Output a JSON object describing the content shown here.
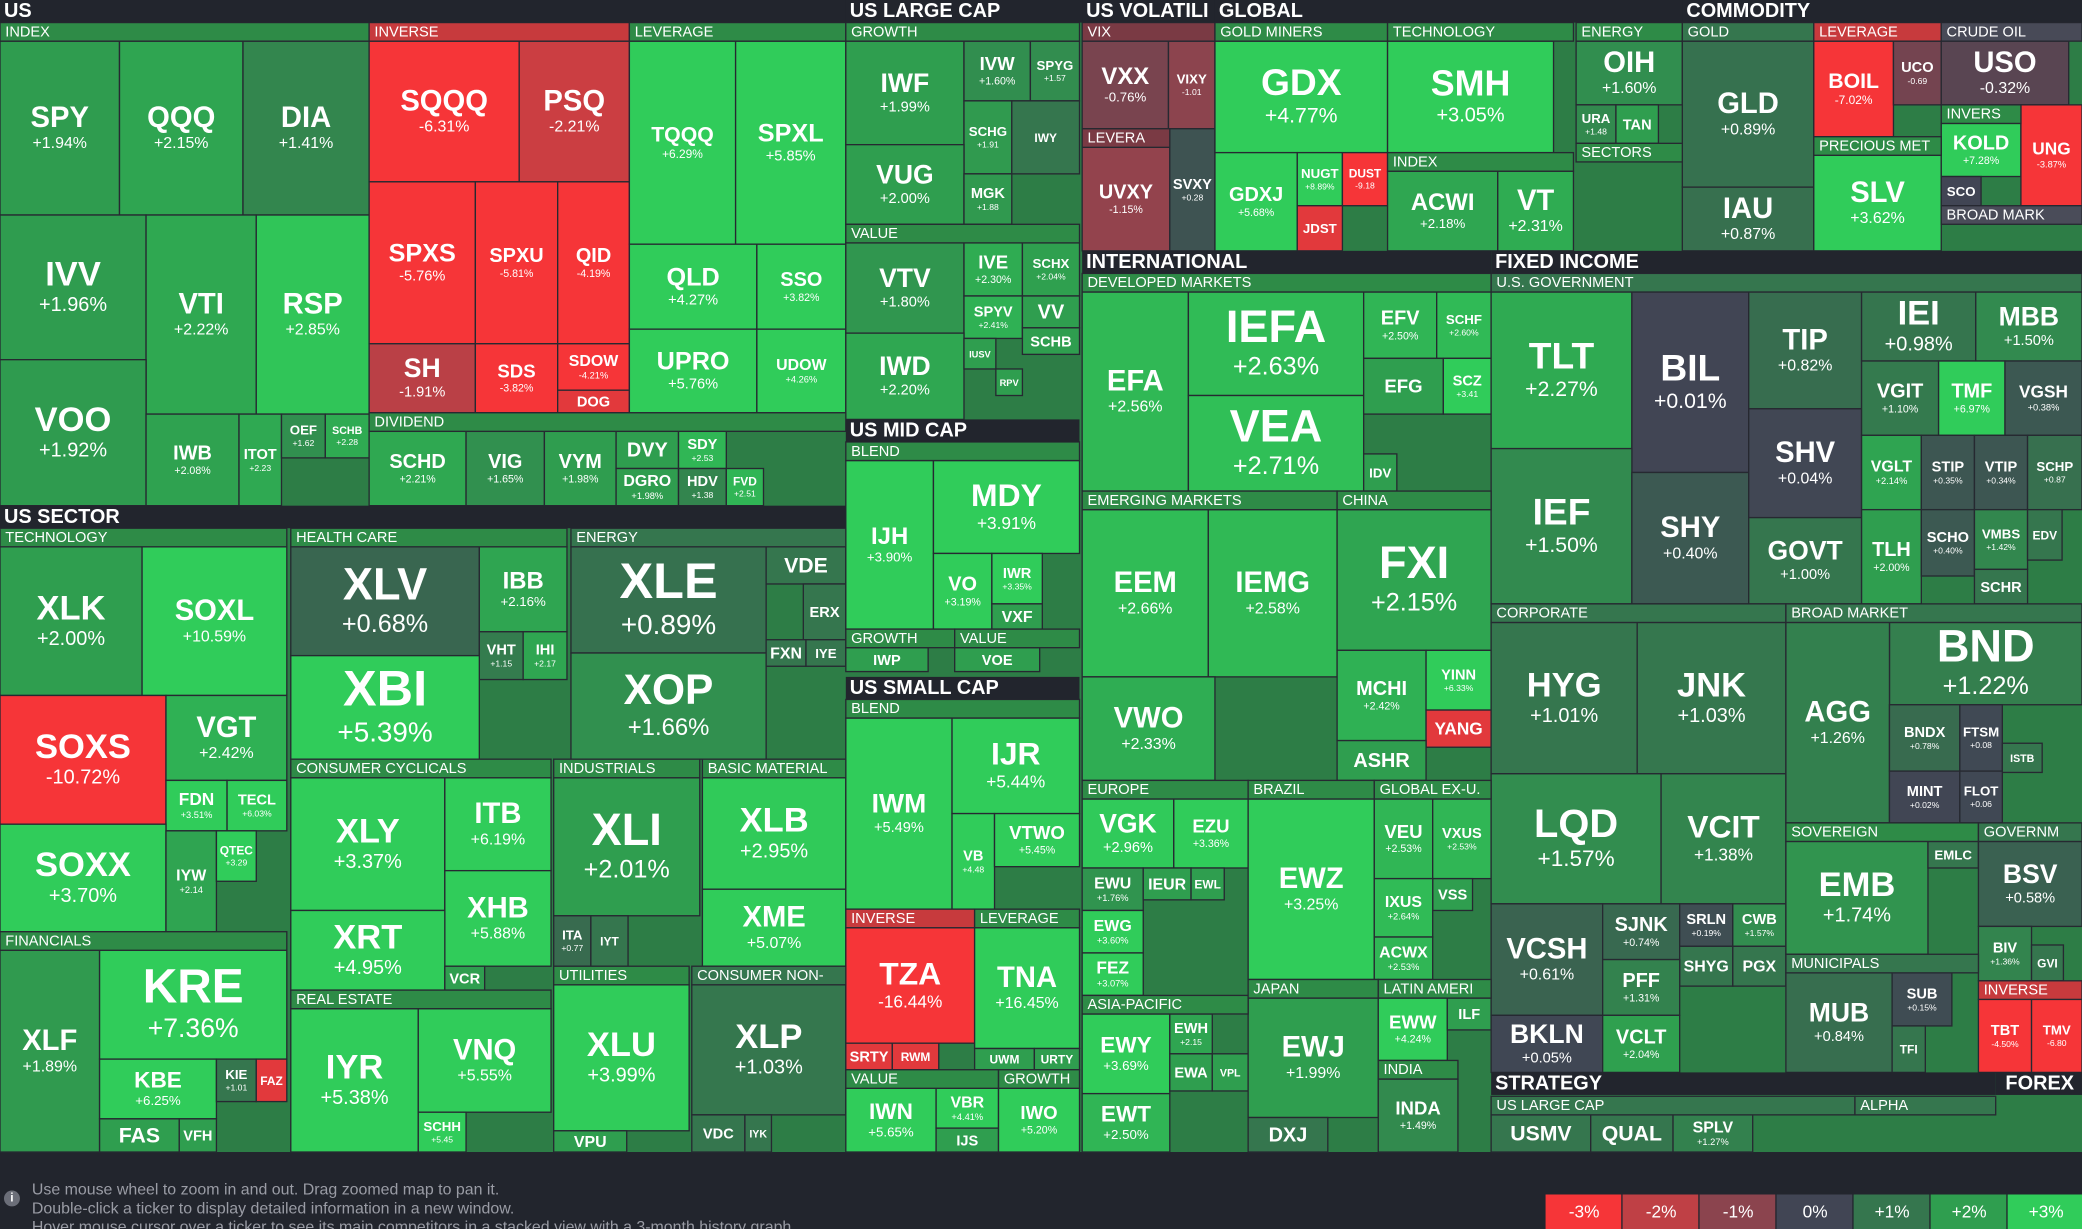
{
  "sections": [
    "US",
    "US LARGE CAP",
    "US VOLATILI",
    "GLOBAL",
    "COMMODITY",
    "US SECTOR",
    "US MID CAP",
    "US SMALL CAP",
    "INTERNATIONAL",
    "FIXED INCOME",
    "STRATEGY",
    "FOREX"
  ],
  "groups": [
    "INDEX",
    "INVERSE",
    "LEVERAGE",
    "DIVIDEND",
    "GROWTH",
    "VALUE",
    "VIX",
    "LEVERA",
    "GOLD MINERS",
    "TECHNOLOGY",
    "ENERGY",
    "INDEX",
    "SECTORS",
    "GOLD",
    "LEVERAGE",
    "CRUDE OIL",
    "PRECIOUS MET",
    "INVERS",
    "BROAD MARK",
    "TECHNOLOGY",
    "HEALTH CARE",
    "ENERGY",
    "CONSUMER CYCLICALS",
    "INDUSTRIALS",
    "BASIC MATERIAL",
    "FINANCIALS",
    "REAL ESTATE",
    "UTILITIES",
    "CONSUMER NON-",
    "BLEND",
    "GROWTH",
    "VALUE",
    "BLEND",
    "INVERSE",
    "LEVERAGE",
    "VALUE",
    "GROWTH",
    "DEVELOPED MARKETS",
    "EMERGING MARKETS",
    "CHINA",
    "EUROPE",
    "BRAZIL",
    "GLOBAL EX-U.",
    "ASIA-PACIFIC",
    "JAPAN",
    "LATIN AMERI",
    "INDIA",
    "U.S. GOVERNMENT",
    "CORPORATE",
    "BROAD MARKET",
    "SOVEREIGN",
    "GOVERNM",
    "MUNICIPALS",
    "INVERSE",
    "US LARGE CAP",
    "ALPHA"
  ],
  "tiles": [
    {
      "ticker": "SPY",
      "change": "+1.94%"
    },
    {
      "ticker": "QQQ",
      "change": "+2.15%"
    },
    {
      "ticker": "DIA",
      "change": "+1.41%"
    },
    {
      "ticker": "IVV",
      "change": "+1.96%"
    },
    {
      "ticker": "VTI",
      "change": "+2.22%"
    },
    {
      "ticker": "RSP",
      "change": "+2.85%"
    },
    {
      "ticker": "VOO",
      "change": "+1.92%"
    },
    {
      "ticker": "IWB",
      "change": "+2.08%"
    },
    {
      "ticker": "ITOT",
      "change": "+2.23"
    },
    {
      "ticker": "OEF",
      "change": "+1.62"
    },
    {
      "ticker": "SCHB",
      "change": "+2.28"
    },
    {
      "ticker": "SQQQ",
      "change": "-6.31%"
    },
    {
      "ticker": "PSQ",
      "change": "-2.21%"
    },
    {
      "ticker": "SPXS",
      "change": "-5.76%"
    },
    {
      "ticker": "SPXU",
      "change": "-5.81%"
    },
    {
      "ticker": "QID",
      "change": "-4.19%"
    },
    {
      "ticker": "SH",
      "change": "-1.91%"
    },
    {
      "ticker": "SDS",
      "change": "-3.82%"
    },
    {
      "ticker": "SDOW",
      "change": "-4.21%"
    },
    {
      "ticker": "DOG"
    },
    {
      "ticker": "TQQQ",
      "change": "+6.29%"
    },
    {
      "ticker": "SPXL",
      "change": "+5.85%"
    },
    {
      "ticker": "QLD",
      "change": "+4.27%"
    },
    {
      "ticker": "SSO",
      "change": "+3.82%"
    },
    {
      "ticker": "UPRO",
      "change": "+5.76%"
    },
    {
      "ticker": "UDOW",
      "change": "+4.26%"
    },
    {
      "ticker": "SCHD",
      "change": "+2.21%"
    },
    {
      "ticker": "VIG",
      "change": "+1.65%"
    },
    {
      "ticker": "VYM",
      "change": "+1.98%"
    },
    {
      "ticker": "DVY"
    },
    {
      "ticker": "SDY",
      "change": "+2.53"
    },
    {
      "ticker": "DGRO",
      "change": "+1.98%"
    },
    {
      "ticker": "HDV",
      "change": "+1.38"
    },
    {
      "ticker": "FVD",
      "change": "+2.51"
    },
    {
      "ticker": "IWF",
      "change": "+1.99%"
    },
    {
      "ticker": "IVW",
      "change": "+1.60%"
    },
    {
      "ticker": "SPYG",
      "change": "+1.57"
    },
    {
      "ticker": "SCHG",
      "change": "+1.91"
    },
    {
      "ticker": "IWY"
    },
    {
      "ticker": "VUG",
      "change": "+2.00%"
    },
    {
      "ticker": "MGK",
      "change": "+1.88"
    },
    {
      "ticker": "VTV",
      "change": "+1.80%"
    },
    {
      "ticker": "IVE",
      "change": "+2.30%"
    },
    {
      "ticker": "SCHX",
      "change": "+2.04%"
    },
    {
      "ticker": "SPYV",
      "change": "+2.41%"
    },
    {
      "ticker": "VV"
    },
    {
      "ticker": "SCHB"
    },
    {
      "ticker": "IWD",
      "change": "+2.20%"
    },
    {
      "ticker": "IUSV"
    },
    {
      "ticker": "RPV"
    },
    {
      "ticker": "VXX",
      "change": "-0.76%"
    },
    {
      "ticker": "VIXY",
      "change": "-1.01"
    },
    {
      "ticker": "UVXY",
      "change": "-1.15%"
    },
    {
      "ticker": "SVXY",
      "change": "+0.28"
    },
    {
      "ticker": "GDX",
      "change": "+4.77%"
    },
    {
      "ticker": "GDXJ",
      "change": "+5.68%"
    },
    {
      "ticker": "NUGT",
      "change": "+8.89%"
    },
    {
      "ticker": "DUST",
      "change": "-9.18"
    },
    {
      "ticker": "JDST"
    },
    {
      "ticker": "SMH",
      "change": "+3.05%"
    },
    {
      "ticker": "OIH",
      "change": "+1.60%"
    },
    {
      "ticker": "URA",
      "change": "+1.48"
    },
    {
      "ticker": "TAN"
    },
    {
      "ticker": "ACWI",
      "change": "+2.18%"
    },
    {
      "ticker": "VT",
      "change": "+2.31%"
    },
    {
      "ticker": "GLD",
      "change": "+0.89%"
    },
    {
      "ticker": "IAU",
      "change": "+0.87%"
    },
    {
      "ticker": "BOIL",
      "change": "-7.02%"
    },
    {
      "ticker": "UCO",
      "change": "-0.69"
    },
    {
      "ticker": "SLV",
      "change": "+3.62%"
    },
    {
      "ticker": "USO",
      "change": "-0.32%"
    },
    {
      "ticker": "KOLD",
      "change": "+7.28%"
    },
    {
      "ticker": "SCO"
    },
    {
      "ticker": "UNG",
      "change": "-3.87%"
    },
    {
      "ticker": "XLK",
      "change": "+2.00%"
    },
    {
      "ticker": "SOXL",
      "change": "+10.59%"
    },
    {
      "ticker": "SOXS",
      "change": "-10.72%"
    },
    {
      "ticker": "VGT",
      "change": "+2.42%"
    },
    {
      "ticker": "FDN",
      "change": "+3.51%"
    },
    {
      "ticker": "TECL",
      "change": "+6.03%"
    },
    {
      "ticker": "SOXX",
      "change": "+3.70%"
    },
    {
      "ticker": "IYW",
      "change": "+2.14"
    },
    {
      "ticker": "QTEC",
      "change": "+3.29"
    },
    {
      "ticker": "XLV",
      "change": "+0.68%"
    },
    {
      "ticker": "IBB",
      "change": "+2.16%"
    },
    {
      "ticker": "VHT",
      "change": "+1.15"
    },
    {
      "ticker": "IHI",
      "change": "+2.17"
    },
    {
      "ticker": "XBI",
      "change": "+5.39%"
    },
    {
      "ticker": "XLE",
      "change": "+0.89%"
    },
    {
      "ticker": "VDE"
    },
    {
      "ticker": "ERX"
    },
    {
      "ticker": "XOP",
      "change": "+1.66%"
    },
    {
      "ticker": "FXN"
    },
    {
      "ticker": "IYE"
    },
    {
      "ticker": "XLY",
      "change": "+3.37%"
    },
    {
      "ticker": "ITB",
      "change": "+6.19%"
    },
    {
      "ticker": "XHB",
      "change": "+5.88%"
    },
    {
      "ticker": "XRT",
      "change": "+4.95%"
    },
    {
      "ticker": "VCR"
    },
    {
      "ticker": "XLI",
      "change": "+2.01%"
    },
    {
      "ticker": "ITA",
      "change": "+0.77"
    },
    {
      "ticker": "IYT"
    },
    {
      "ticker": "XLB",
      "change": "+2.95%"
    },
    {
      "ticker": "XME",
      "change": "+5.07%"
    },
    {
      "ticker": "XLF",
      "change": "+1.89%"
    },
    {
      "ticker": "KRE",
      "change": "+7.36%"
    },
    {
      "ticker": "KBE",
      "change": "+6.25%"
    },
    {
      "ticker": "KIE",
      "change": "+1.01"
    },
    {
      "ticker": "FAZ"
    },
    {
      "ticker": "FAS"
    },
    {
      "ticker": "VFH"
    },
    {
      "ticker": "IYR",
      "change": "+5.38%"
    },
    {
      "ticker": "VNQ",
      "change": "+5.55%"
    },
    {
      "ticker": "SCHH",
      "change": "+5.45"
    },
    {
      "ticker": "XLU",
      "change": "+3.99%"
    },
    {
      "ticker": "VPU"
    },
    {
      "ticker": "XLP",
      "change": "+1.03%"
    },
    {
      "ticker": "VDC"
    },
    {
      "ticker": "IYK"
    },
    {
      "ticker": "IJH",
      "change": "+3.90%"
    },
    {
      "ticker": "MDY",
      "change": "+3.91%"
    },
    {
      "ticker": "VO",
      "change": "+3.19%"
    },
    {
      "ticker": "IWR",
      "change": "+3.35%"
    },
    {
      "ticker": "VXF"
    },
    {
      "ticker": "IWP"
    },
    {
      "ticker": "VOE"
    },
    {
      "ticker": "IWM",
      "change": "+5.49%"
    },
    {
      "ticker": "IJR",
      "change": "+5.44%"
    },
    {
      "ticker": "VB",
      "change": "+4.48"
    },
    {
      "ticker": "VTWO",
      "change": "+5.45%"
    },
    {
      "ticker": "TZA",
      "change": "-16.44%"
    },
    {
      "ticker": "SRTY"
    },
    {
      "ticker": "RWM"
    },
    {
      "ticker": "TNA",
      "change": "+16.45%"
    },
    {
      "ticker": "UWM"
    },
    {
      "ticker": "URTY"
    },
    {
      "ticker": "IWN",
      "change": "+5.65%"
    },
    {
      "ticker": "VBR",
      "change": "+4.41%"
    },
    {
      "ticker": "IJS"
    },
    {
      "ticker": "IWO",
      "change": "+5.20%"
    },
    {
      "ticker": "EFA",
      "change": "+2.56%"
    },
    {
      "ticker": "IEFA",
      "change": "+2.63%"
    },
    {
      "ticker": "VEA",
      "change": "+2.71%"
    },
    {
      "ticker": "EFV",
      "change": "+2.50%"
    },
    {
      "ticker": "SCHF",
      "change": "+2.60%"
    },
    {
      "ticker": "EFG"
    },
    {
      "ticker": "SCZ",
      "change": "+3.41"
    },
    {
      "ticker": "IDV"
    },
    {
      "ticker": "EEM",
      "change": "+2.66%"
    },
    {
      "ticker": "IEMG",
      "change": "+2.58%"
    },
    {
      "ticker": "VWO",
      "change": "+2.33%"
    },
    {
      "ticker": "FXI",
      "change": "+2.15%"
    },
    {
      "ticker": "MCHI",
      "change": "+2.42%"
    },
    {
      "ticker": "YINN",
      "change": "+6.33%"
    },
    {
      "ticker": "YANG"
    },
    {
      "ticker": "ASHR"
    },
    {
      "ticker": "VGK",
      "change": "+2.96%"
    },
    {
      "ticker": "EZU",
      "change": "+3.36%"
    },
    {
      "ticker": "EWU",
      "change": "+1.76%"
    },
    {
      "ticker": "IEUR"
    },
    {
      "ticker": "EWL"
    },
    {
      "ticker": "EWG",
      "change": "+3.60%"
    },
    {
      "ticker": "FEZ",
      "change": "+3.07%"
    },
    {
      "ticker": "EWZ",
      "change": "+3.25%"
    },
    {
      "ticker": "VEU",
      "change": "+2.53%"
    },
    {
      "ticker": "VXUS",
      "change": "+2.53%"
    },
    {
      "ticker": "VSS"
    },
    {
      "ticker": "IXUS",
      "change": "+2.64%"
    },
    {
      "ticker": "ACWX",
      "change": "+2.53%"
    },
    {
      "ticker": "EWY",
      "change": "+3.69%"
    },
    {
      "ticker": "EWH",
      "change": "+2.15"
    },
    {
      "ticker": "EWA"
    },
    {
      "ticker": "VPL"
    },
    {
      "ticker": "EWT",
      "change": "+2.50%"
    },
    {
      "ticker": "EWJ",
      "change": "+1.99%"
    },
    {
      "ticker": "DXJ"
    },
    {
      "ticker": "EWW",
      "change": "+4.24%"
    },
    {
      "ticker": "ILF"
    },
    {
      "ticker": "INDA",
      "change": "+1.49%"
    },
    {
      "ticker": "TLT",
      "change": "+2.27%"
    },
    {
      "ticker": "BIL",
      "change": "+0.01%"
    },
    {
      "ticker": "TIP",
      "change": "+0.82%"
    },
    {
      "ticker": "IEI",
      "change": "+0.98%"
    },
    {
      "ticker": "MBB",
      "change": "+1.50%"
    },
    {
      "ticker": "IEF",
      "change": "+1.50%"
    },
    {
      "ticker": "SHY",
      "change": "+0.40%"
    },
    {
      "ticker": "SHV",
      "change": "+0.04%"
    },
    {
      "ticker": "VGIT",
      "change": "+1.10%"
    },
    {
      "ticker": "TMF",
      "change": "+6.97%"
    },
    {
      "ticker": "VGSH",
      "change": "+0.38%"
    },
    {
      "ticker": "GOVT",
      "change": "+1.00%"
    },
    {
      "ticker": "VGLT",
      "change": "+2.14%"
    },
    {
      "ticker": "STIP",
      "change": "+0.35%"
    },
    {
      "ticker": "VTIP",
      "change": "+0.34%"
    },
    {
      "ticker": "SCHP",
      "change": "+0.87"
    },
    {
      "ticker": "TLH",
      "change": "+2.00%"
    },
    {
      "ticker": "SCHO",
      "change": "+0.40%"
    },
    {
      "ticker": "VMBS",
      "change": "+1.42%"
    },
    {
      "ticker": "EDV"
    },
    {
      "ticker": "SCHR"
    },
    {
      "ticker": "HYG",
      "change": "+1.01%"
    },
    {
      "ticker": "JNK",
      "change": "+1.03%"
    },
    {
      "ticker": "LQD",
      "change": "+1.57%"
    },
    {
      "ticker": "VCIT",
      "change": "+1.38%"
    },
    {
      "ticker": "VCSH",
      "change": "+0.61%"
    },
    {
      "ticker": "BKLN",
      "change": "+0.05%"
    },
    {
      "ticker": "SJNK",
      "change": "+0.74%"
    },
    {
      "ticker": "SRLN",
      "change": "+0.19%"
    },
    {
      "ticker": "CWB",
      "change": "+1.57%"
    },
    {
      "ticker": "SHYG"
    },
    {
      "ticker": "PGX"
    },
    {
      "ticker": "PFF",
      "change": "+1.31%"
    },
    {
      "ticker": "VCLT",
      "change": "+2.04%"
    },
    {
      "ticker": "BND",
      "change": "+1.22%"
    },
    {
      "ticker": "AGG",
      "change": "+1.26%"
    },
    {
      "ticker": "BNDX",
      "change": "+0.78%"
    },
    {
      "ticker": "FTSM",
      "change": "+0.08"
    },
    {
      "ticker": "ISTB"
    },
    {
      "ticker": "MINT",
      "change": "+0.02%"
    },
    {
      "ticker": "FLOT",
      "change": "+0.06"
    },
    {
      "ticker": "EMB",
      "change": "+1.74%"
    },
    {
      "ticker": "EMLC"
    },
    {
      "ticker": "BSV",
      "change": "+0.58%"
    },
    {
      "ticker": "BIV",
      "change": "+1.36%"
    },
    {
      "ticker": "GVI"
    },
    {
      "ticker": "MUB",
      "change": "+0.84%"
    },
    {
      "ticker": "SUB",
      "change": "+0.15%"
    },
    {
      "ticker": "TFI"
    },
    {
      "ticker": "TBT",
      "change": "-4.50%"
    },
    {
      "ticker": "TMV",
      "change": "-6.80"
    },
    {
      "ticker": "USMV"
    },
    {
      "ticker": "QUAL"
    },
    {
      "ticker": "SPLV",
      "change": "+1.27%"
    }
  ],
  "footer": {
    "hints": [
      "Use mouse wheel to zoom in and out. Drag zoomed map to pan it.",
      "Double-click a ticker to display detailed information in a new window.",
      "Hover mouse cursor over a ticker to see its main competitors in a stacked view with a 3-month history graph."
    ],
    "legend": [
      "-3%",
      "-2%",
      "-1%",
      "0%",
      "+1%",
      "+2%",
      "+3%"
    ]
  }
}
